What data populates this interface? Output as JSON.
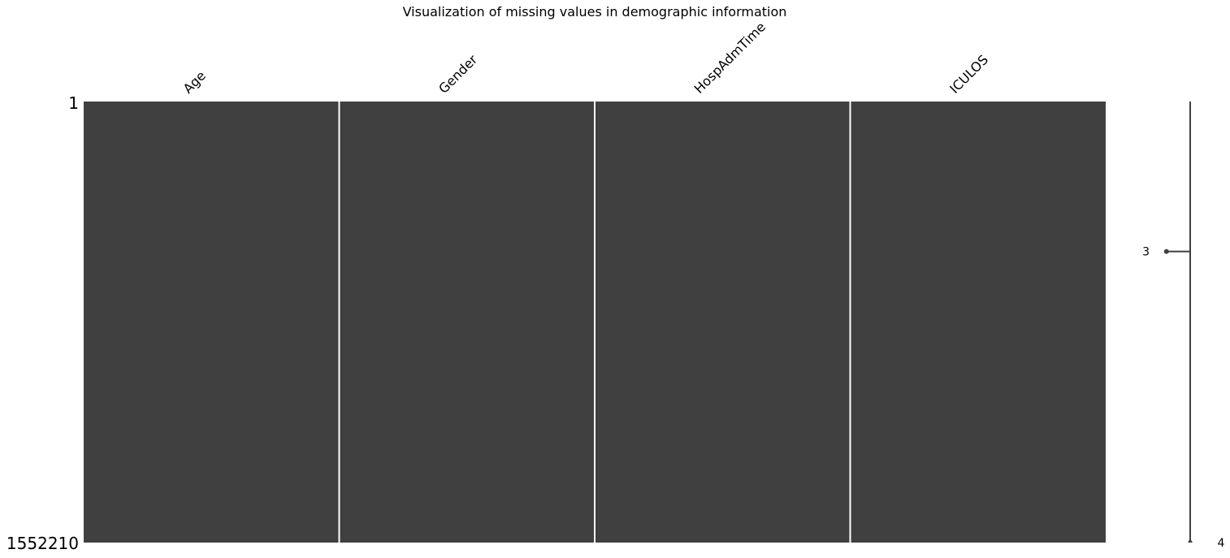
{
  "chart_data": {
    "type": "heatmap",
    "title": "Visualization of missing values in demographic information",
    "columns": [
      "Age",
      "Gender",
      "HospAdmTime",
      "ICULOS"
    ],
    "row_range": [
      1,
      1552210
    ],
    "row_labels": {
      "first": "1",
      "last": "1552210"
    },
    "fill_color": "#404040",
    "separator_color": "#ffffff",
    "missing": [],
    "sparkline": {
      "points": [
        {
          "row_fraction": 0.0,
          "nonmissing_count": 4
        },
        {
          "row_fraction": 0.34,
          "nonmissing_count": 3
        },
        {
          "row_fraction": 1.0,
          "nonmissing_count": 4
        }
      ],
      "labels": [
        {
          "text": "3",
          "row_fraction": 0.34,
          "value": 3
        },
        {
          "text": "4",
          "row_fraction": 1.0,
          "value": 4
        }
      ],
      "range": [
        0,
        4
      ],
      "color": "#404040"
    }
  }
}
